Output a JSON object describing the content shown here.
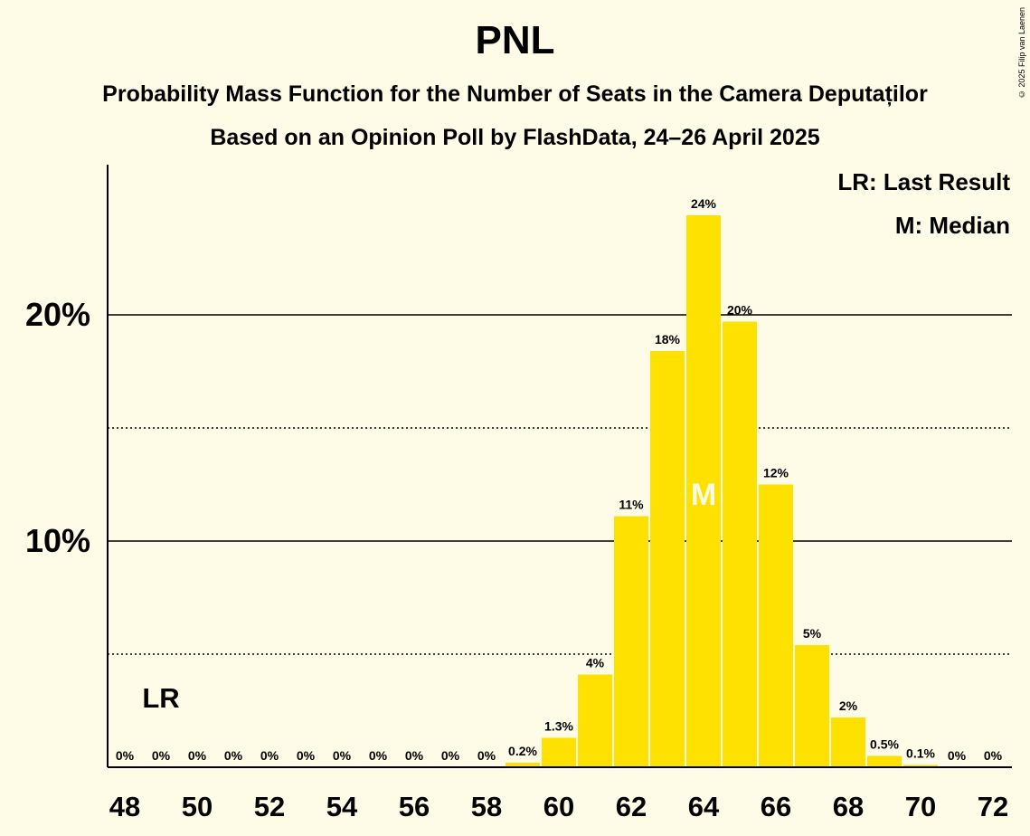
{
  "title": "PNL",
  "subtitle1": "Probability Mass Function for the Number of Seats in the Camera Deputaților",
  "subtitle2": "Based on an Opinion Poll by FlashData, 24–26 April 2025",
  "copyright": "© 2025 Filip van Laenen",
  "legend": {
    "last_result": "LR: Last Result",
    "median": "M: Median"
  },
  "colors": {
    "background": "#FEFBE6",
    "bar": "#FFE100",
    "median_text": "#FEFBE6"
  },
  "chart_data": {
    "type": "bar",
    "x": [
      48,
      49,
      50,
      51,
      52,
      53,
      54,
      55,
      56,
      57,
      58,
      59,
      60,
      61,
      62,
      63,
      64,
      65,
      66,
      67,
      68,
      69,
      70,
      71,
      72
    ],
    "values": [
      0,
      0,
      0,
      0,
      0,
      0,
      0,
      0,
      0,
      0,
      0,
      0.2,
      1.3,
      4.1,
      11.1,
      18.4,
      24.4,
      19.7,
      12.5,
      5.4,
      2.2,
      0.5,
      0.1,
      0,
      0
    ],
    "data_labels": [
      "0%",
      "0%",
      "0%",
      "0%",
      "0%",
      "0%",
      "0%",
      "0%",
      "0%",
      "0%",
      "0%",
      "0.2%",
      "1.3%",
      "4%",
      "11%",
      "18%",
      "24%",
      "20%",
      "12%",
      "5%",
      "2%",
      "0.5%",
      "0.1%",
      "0%",
      "0%"
    ],
    "x_tick_labels": [
      "48",
      "50",
      "52",
      "54",
      "56",
      "58",
      "60",
      "62",
      "64",
      "66",
      "68",
      "70",
      "72"
    ],
    "y_tick_labels": [
      "10%",
      "20%"
    ],
    "y_ticks": [
      10,
      20
    ],
    "y_minor_ticks": [
      5,
      15
    ],
    "ylim": [
      0,
      26.5
    ],
    "last_result": {
      "x": 49,
      "label": "LR"
    },
    "median": {
      "x": 64,
      "label": "M"
    }
  }
}
